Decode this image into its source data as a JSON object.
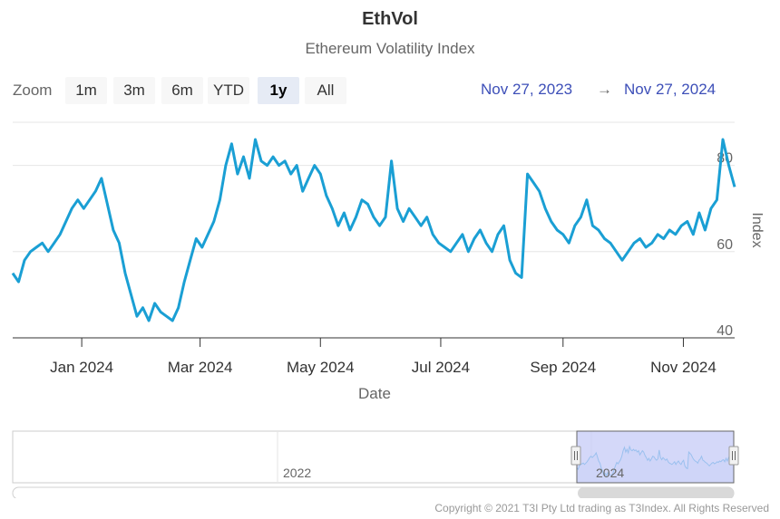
{
  "title": "EthVol",
  "subtitle": "Ethereum Volatility Index",
  "range_selector": {
    "zoom_label": "Zoom",
    "buttons": [
      "1m",
      "3m",
      "6m",
      "YTD",
      "1y",
      "All"
    ],
    "selected": "1y",
    "from": "Nov 27, 2023",
    "arrow": "→",
    "to": "Nov 27, 2024"
  },
  "navigator": {
    "labels": [
      "2022",
      "2024"
    ]
  },
  "copyright": "Copyright © 2021 T3I Pty Ltd trading as T3Index. All Rights Reserved",
  "colors": {
    "series": "#1a9fd4",
    "range_date": "#3d4fb8",
    "navigator_mask": "#c6cbf7"
  },
  "chart_data": {
    "type": "line",
    "xlabel": "Date",
    "ylabel": "Index",
    "x_range": [
      "2023-11-27",
      "2024-11-27"
    ],
    "ylim": [
      40,
      90
    ],
    "y_ticks": [
      40,
      60,
      80
    ],
    "x_ticks": [
      "Jan 2024",
      "Mar 2024",
      "May 2024",
      "Jul 2024",
      "Sep 2024",
      "Nov 2024"
    ],
    "grid": true,
    "series": [
      {
        "values": [
          [
            "2023-11-27",
            55
          ],
          [
            "2023-11-30",
            53
          ],
          [
            "2023-12-03",
            58
          ],
          [
            "2023-12-06",
            60
          ],
          [
            "2023-12-09",
            61
          ],
          [
            "2023-12-12",
            62
          ],
          [
            "2023-12-15",
            60
          ],
          [
            "2023-12-18",
            62
          ],
          [
            "2023-12-21",
            64
          ],
          [
            "2023-12-24",
            67
          ],
          [
            "2023-12-27",
            70
          ],
          [
            "2023-12-30",
            72
          ],
          [
            "2024-01-02",
            70
          ],
          [
            "2024-01-05",
            72
          ],
          [
            "2024-01-08",
            74
          ],
          [
            "2024-01-11",
            77
          ],
          [
            "2024-01-14",
            71
          ],
          [
            "2024-01-17",
            65
          ],
          [
            "2024-01-20",
            62
          ],
          [
            "2024-01-23",
            55
          ],
          [
            "2024-01-26",
            50
          ],
          [
            "2024-01-29",
            45
          ],
          [
            "2024-02-01",
            47
          ],
          [
            "2024-02-04",
            44
          ],
          [
            "2024-02-07",
            48
          ],
          [
            "2024-02-10",
            46
          ],
          [
            "2024-02-13",
            45
          ],
          [
            "2024-02-16",
            44
          ],
          [
            "2024-02-19",
            47
          ],
          [
            "2024-02-22",
            53
          ],
          [
            "2024-02-25",
            58
          ],
          [
            "2024-02-28",
            63
          ],
          [
            "2024-03-02",
            61
          ],
          [
            "2024-03-05",
            64
          ],
          [
            "2024-03-08",
            67
          ],
          [
            "2024-03-11",
            72
          ],
          [
            "2024-03-14",
            80
          ],
          [
            "2024-03-17",
            85
          ],
          [
            "2024-03-20",
            78
          ],
          [
            "2024-03-23",
            82
          ],
          [
            "2024-03-26",
            77
          ],
          [
            "2024-03-29",
            86
          ],
          [
            "2024-04-01",
            81
          ],
          [
            "2024-04-04",
            80
          ],
          [
            "2024-04-07",
            82
          ],
          [
            "2024-04-10",
            80
          ],
          [
            "2024-04-13",
            81
          ],
          [
            "2024-04-16",
            78
          ],
          [
            "2024-04-19",
            80
          ],
          [
            "2024-04-22",
            74
          ],
          [
            "2024-04-25",
            77
          ],
          [
            "2024-04-28",
            80
          ],
          [
            "2024-05-01",
            78
          ],
          [
            "2024-05-04",
            73
          ],
          [
            "2024-05-07",
            70
          ],
          [
            "2024-05-10",
            66
          ],
          [
            "2024-05-13",
            69
          ],
          [
            "2024-05-16",
            65
          ],
          [
            "2024-05-19",
            68
          ],
          [
            "2024-05-22",
            72
          ],
          [
            "2024-05-25",
            71
          ],
          [
            "2024-05-28",
            68
          ],
          [
            "2024-05-31",
            66
          ],
          [
            "2024-06-03",
            68
          ],
          [
            "2024-06-06",
            81
          ],
          [
            "2024-06-09",
            70
          ],
          [
            "2024-06-12",
            67
          ],
          [
            "2024-06-15",
            70
          ],
          [
            "2024-06-18",
            68
          ],
          [
            "2024-06-21",
            66
          ],
          [
            "2024-06-24",
            68
          ],
          [
            "2024-06-27",
            64
          ],
          [
            "2024-06-30",
            62
          ],
          [
            "2024-07-03",
            61
          ],
          [
            "2024-07-06",
            60
          ],
          [
            "2024-07-09",
            62
          ],
          [
            "2024-07-12",
            64
          ],
          [
            "2024-07-15",
            60
          ],
          [
            "2024-07-18",
            63
          ],
          [
            "2024-07-21",
            65
          ],
          [
            "2024-07-24",
            62
          ],
          [
            "2024-07-27",
            60
          ],
          [
            "2024-07-30",
            64
          ],
          [
            "2024-08-02",
            66
          ],
          [
            "2024-08-05",
            58
          ],
          [
            "2024-08-08",
            55
          ],
          [
            "2024-08-11",
            54
          ],
          [
            "2024-08-14",
            78
          ],
          [
            "2024-08-17",
            76
          ],
          [
            "2024-08-20",
            74
          ],
          [
            "2024-08-23",
            70
          ],
          [
            "2024-08-26",
            67
          ],
          [
            "2024-08-29",
            65
          ],
          [
            "2024-09-01",
            64
          ],
          [
            "2024-09-04",
            62
          ],
          [
            "2024-09-07",
            66
          ],
          [
            "2024-09-10",
            68
          ],
          [
            "2024-09-13",
            72
          ],
          [
            "2024-09-16",
            66
          ],
          [
            "2024-09-19",
            65
          ],
          [
            "2024-09-22",
            63
          ],
          [
            "2024-09-25",
            62
          ],
          [
            "2024-09-28",
            60
          ],
          [
            "2024-10-01",
            58
          ],
          [
            "2024-10-04",
            60
          ],
          [
            "2024-10-07",
            62
          ],
          [
            "2024-10-10",
            63
          ],
          [
            "2024-10-13",
            61
          ],
          [
            "2024-10-16",
            62
          ],
          [
            "2024-10-19",
            64
          ],
          [
            "2024-10-22",
            63
          ],
          [
            "2024-10-25",
            65
          ],
          [
            "2024-10-28",
            64
          ],
          [
            "2024-10-31",
            66
          ],
          [
            "2024-11-03",
            67
          ],
          [
            "2024-11-06",
            64
          ],
          [
            "2024-11-09",
            69
          ],
          [
            "2024-11-12",
            65
          ],
          [
            "2024-11-15",
            70
          ],
          [
            "2024-11-18",
            72
          ],
          [
            "2024-11-21",
            86
          ],
          [
            "2024-11-24",
            80
          ],
          [
            "2024-11-27",
            75
          ]
        ]
      }
    ]
  }
}
